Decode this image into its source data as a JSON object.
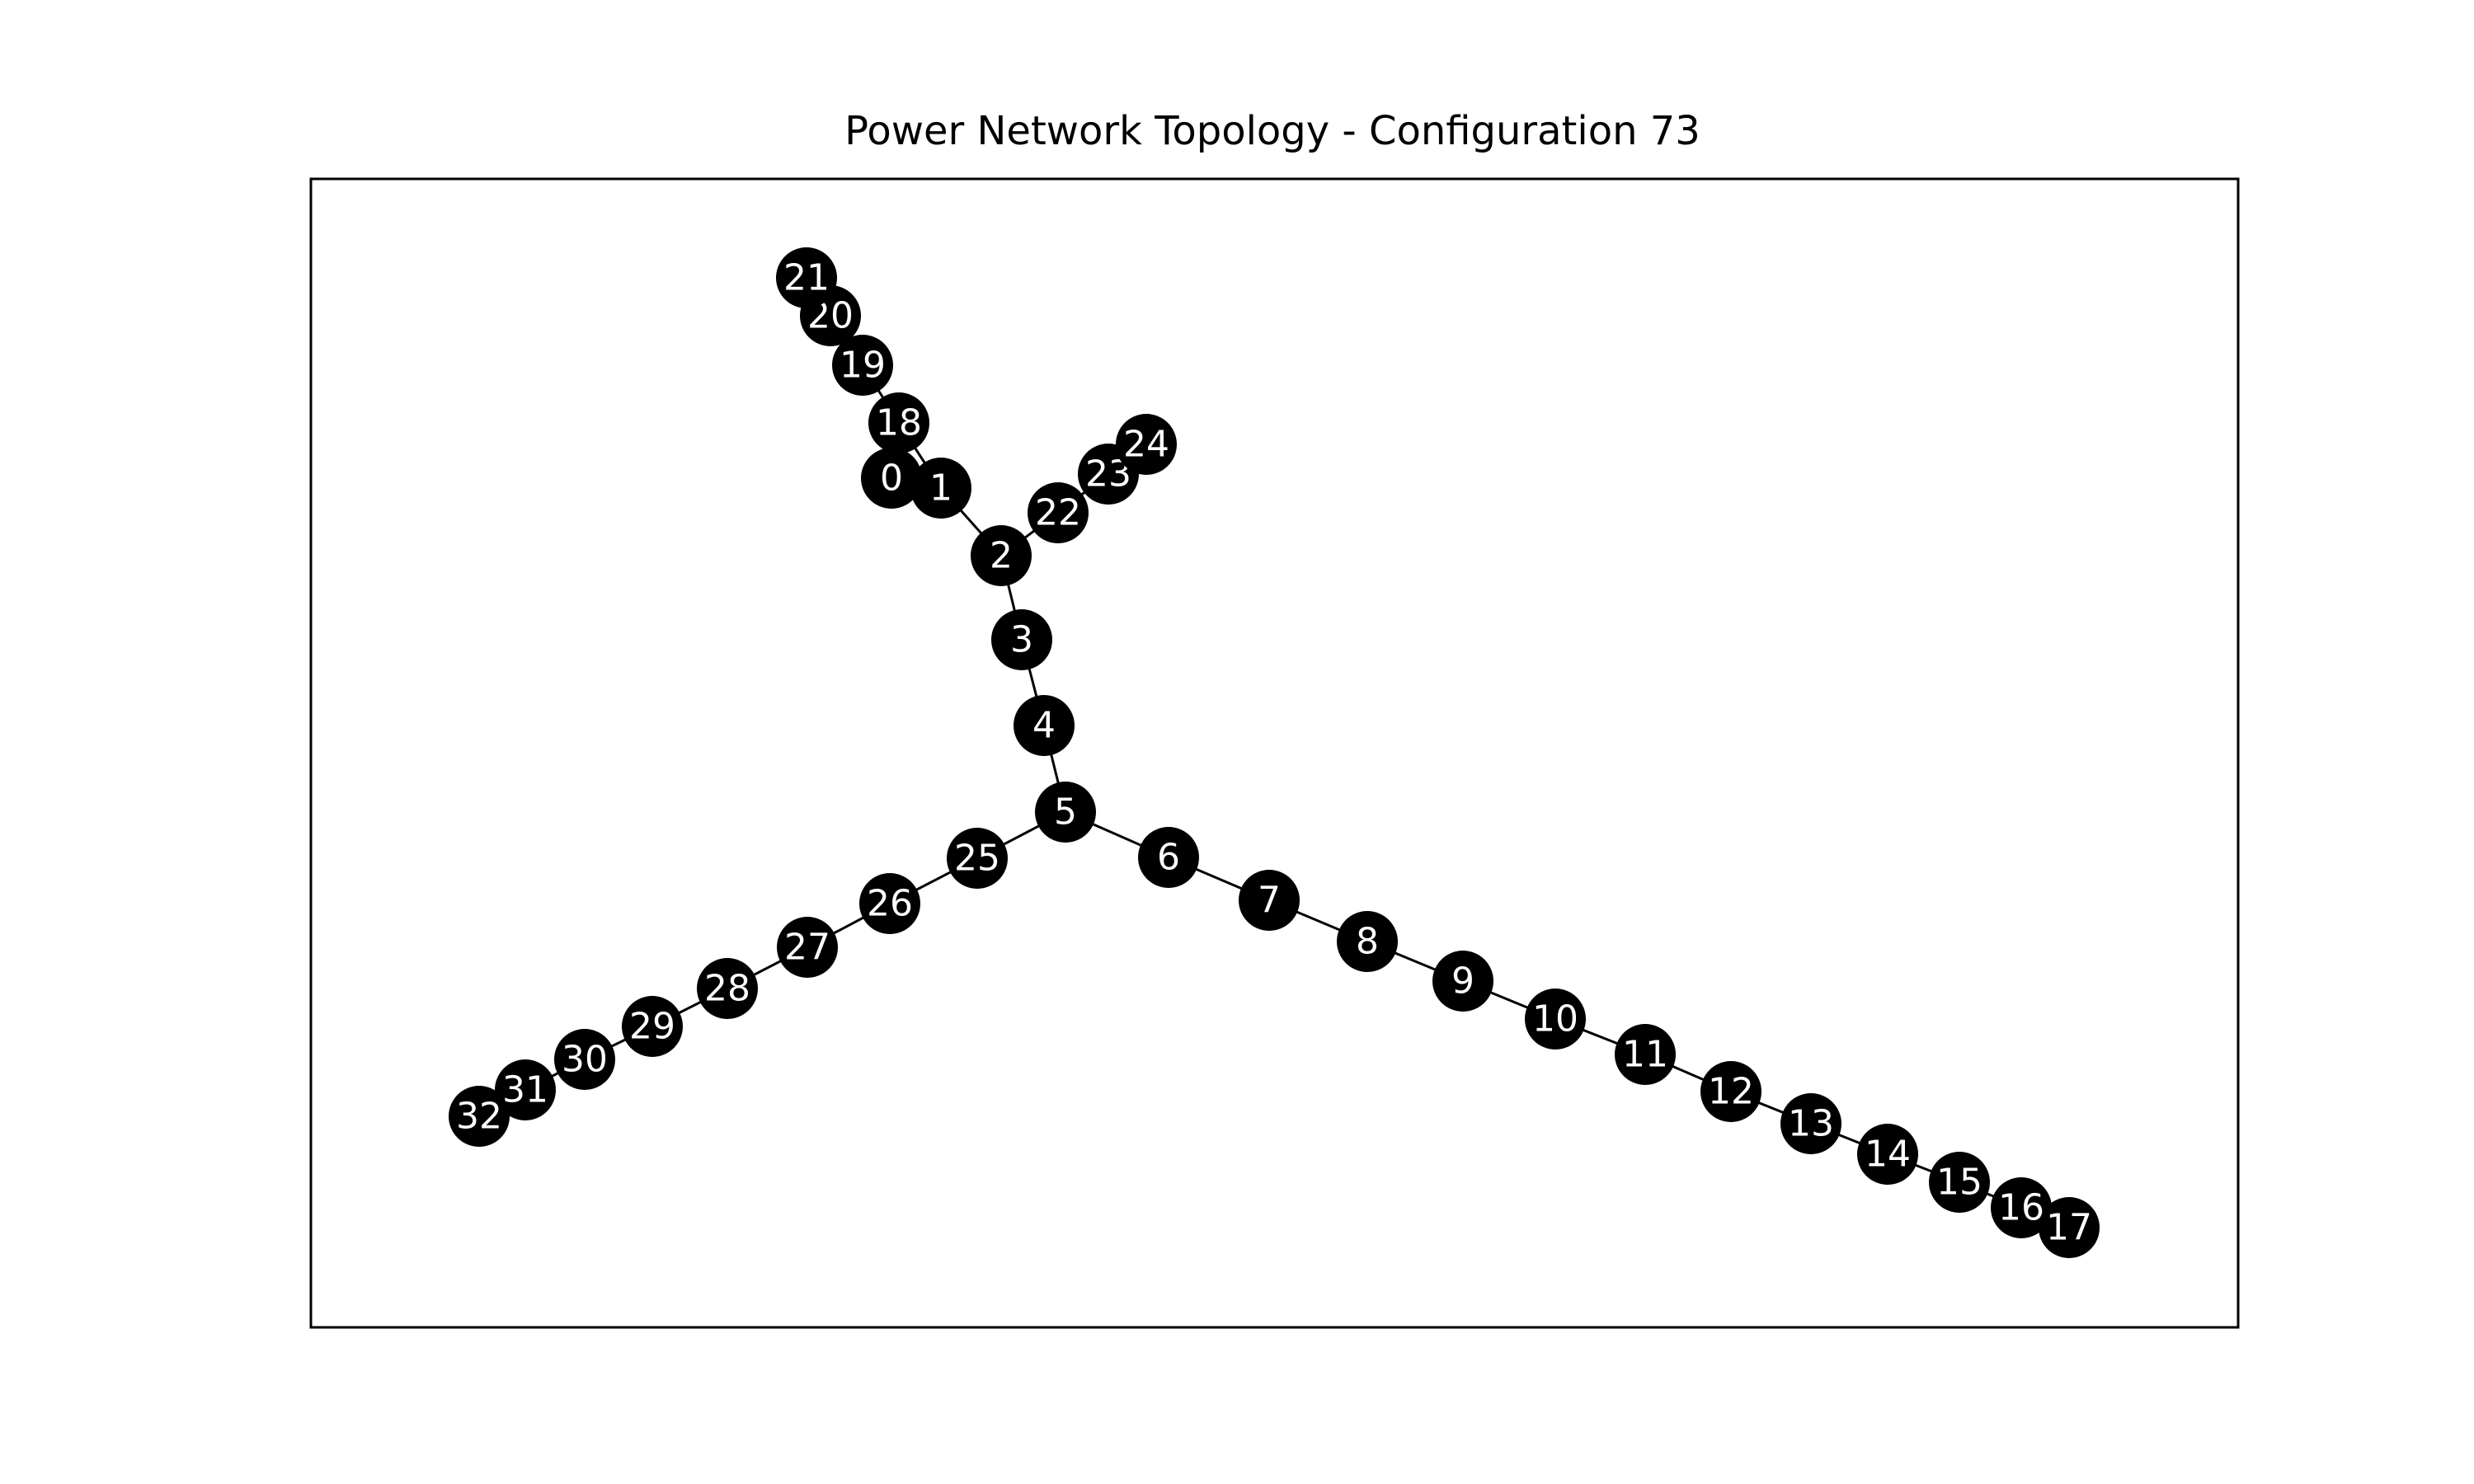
{
  "figure": {
    "title": "Power Network Topology - Configuration 73"
  },
  "graph": {
    "node_color": "#000000",
    "label_color": "#ffffff",
    "edge_color": "#000000",
    "nodes": [
      {
        "id": "0",
        "label": "0"
      },
      {
        "id": "1",
        "label": "1"
      },
      {
        "id": "2",
        "label": "2"
      },
      {
        "id": "3",
        "label": "3"
      },
      {
        "id": "4",
        "label": "4"
      },
      {
        "id": "5",
        "label": "5"
      },
      {
        "id": "6",
        "label": "6"
      },
      {
        "id": "7",
        "label": "7"
      },
      {
        "id": "8",
        "label": "8"
      },
      {
        "id": "9",
        "label": "9"
      },
      {
        "id": "10",
        "label": "10"
      },
      {
        "id": "11",
        "label": "11"
      },
      {
        "id": "12",
        "label": "12"
      },
      {
        "id": "13",
        "label": "13"
      },
      {
        "id": "14",
        "label": "14"
      },
      {
        "id": "15",
        "label": "15"
      },
      {
        "id": "16",
        "label": "16"
      },
      {
        "id": "17",
        "label": "17"
      },
      {
        "id": "18",
        "label": "18"
      },
      {
        "id": "19",
        "label": "19"
      },
      {
        "id": "20",
        "label": "20"
      },
      {
        "id": "21",
        "label": "21"
      },
      {
        "id": "22",
        "label": "22"
      },
      {
        "id": "23",
        "label": "23"
      },
      {
        "id": "24",
        "label": "24"
      },
      {
        "id": "25",
        "label": "25"
      },
      {
        "id": "26",
        "label": "26"
      },
      {
        "id": "27",
        "label": "27"
      },
      {
        "id": "28",
        "label": "28"
      },
      {
        "id": "29",
        "label": "29"
      },
      {
        "id": "30",
        "label": "30"
      },
      {
        "id": "31",
        "label": "31"
      },
      {
        "id": "32",
        "label": "32"
      }
    ],
    "edges": [
      [
        "0",
        "1"
      ],
      [
        "1",
        "2"
      ],
      [
        "2",
        "3"
      ],
      [
        "3",
        "4"
      ],
      [
        "4",
        "5"
      ],
      [
        "5",
        "6"
      ],
      [
        "6",
        "7"
      ],
      [
        "7",
        "8"
      ],
      [
        "8",
        "9"
      ],
      [
        "9",
        "10"
      ],
      [
        "10",
        "11"
      ],
      [
        "11",
        "12"
      ],
      [
        "12",
        "13"
      ],
      [
        "13",
        "14"
      ],
      [
        "14",
        "15"
      ],
      [
        "15",
        "16"
      ],
      [
        "16",
        "17"
      ],
      [
        "1",
        "18"
      ],
      [
        "18",
        "19"
      ],
      [
        "19",
        "20"
      ],
      [
        "20",
        "21"
      ],
      [
        "2",
        "22"
      ],
      [
        "22",
        "23"
      ],
      [
        "23",
        "24"
      ],
      [
        "5",
        "25"
      ],
      [
        "25",
        "26"
      ],
      [
        "26",
        "27"
      ],
      [
        "27",
        "28"
      ],
      [
        "28",
        "29"
      ],
      [
        "29",
        "30"
      ],
      [
        "30",
        "31"
      ],
      [
        "31",
        "32"
      ]
    ]
  }
}
